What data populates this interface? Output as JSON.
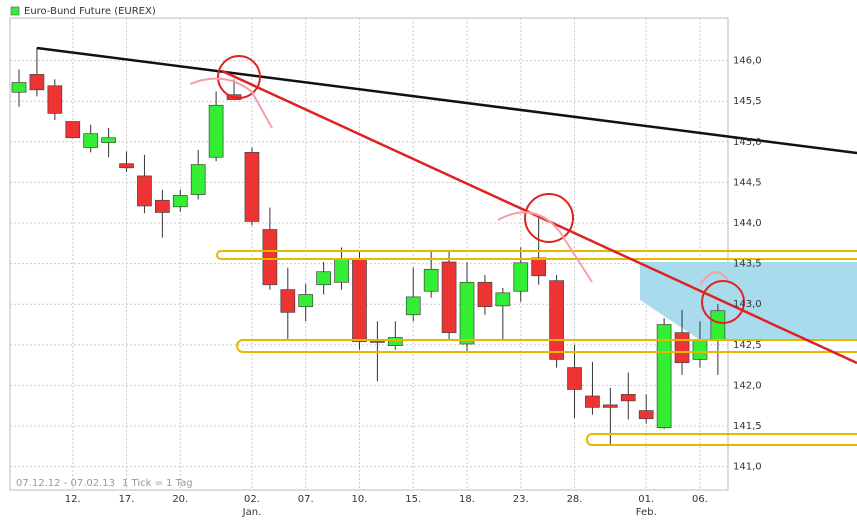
{
  "chart_data": {
    "type": "candlestick",
    "title": "Euro-Bund Future (EUREX)",
    "date_range": "07.12.12 - 07.02.13",
    "tick_note": "1 Tick = 1 Tag",
    "up_color": "#33ee33",
    "down_color": "#ee3333",
    "grid": true,
    "categories": [
      null,
      null,
      null,
      "12.",
      null,
      null,
      "17.",
      null,
      null,
      "20.",
      null,
      null,
      null,
      "02.",
      null,
      null,
      "07.",
      null,
      null,
      "10.",
      null,
      null,
      "15.",
      null,
      null,
      "18.",
      null,
      null,
      "23.",
      null,
      null,
      "28.",
      null,
      null,
      null,
      "01.",
      null,
      null,
      "06.",
      null
    ],
    "category_sublabels": [
      null,
      null,
      null,
      null,
      null,
      null,
      null,
      null,
      null,
      null,
      null,
      null,
      null,
      "Jan.",
      null,
      null,
      null,
      null,
      null,
      null,
      null,
      null,
      null,
      null,
      null,
      null,
      null,
      null,
      null,
      null,
      null,
      null,
      null,
      null,
      null,
      "Feb.",
      null,
      null,
      null,
      null
    ],
    "open": [
      145.61,
      145.83,
      145.69,
      145.25,
      144.93,
      144.99,
      144.73,
      144.58,
      144.28,
      144.2,
      144.35,
      144.81,
      145.58,
      144.87,
      143.92,
      143.18,
      142.97,
      143.24,
      143.27,
      143.55,
      142.55,
      142.49,
      142.87,
      143.16,
      143.52,
      142.51,
      143.27,
      142.98,
      143.16,
      143.57,
      143.29,
      142.22,
      141.87,
      141.76,
      141.89,
      141.69,
      141.48,
      142.65,
      142.32,
      142.56
    ],
    "high": [
      145.89,
      146.16,
      145.77,
      145.25,
      145.21,
      145.17,
      144.88,
      144.84,
      144.41,
      144.41,
      144.9,
      145.62,
      145.77,
      144.93,
      144.19,
      143.45,
      143.25,
      143.52,
      143.7,
      143.65,
      142.79,
      142.79,
      143.45,
      143.67,
      143.67,
      143.52,
      143.36,
      143.2,
      143.7,
      144.07,
      143.36,
      142.5,
      142.29,
      141.97,
      142.16,
      141.89,
      142.83,
      142.93,
      142.79,
      143.0
    ],
    "low": [
      145.43,
      145.56,
      145.27,
      145.05,
      144.87,
      144.81,
      144.63,
      144.12,
      143.82,
      144.14,
      144.29,
      144.76,
      145.52,
      143.97,
      143.18,
      142.56,
      142.79,
      143.12,
      143.18,
      142.44,
      142.05,
      142.44,
      142.79,
      143.08,
      142.56,
      142.42,
      142.87,
      142.56,
      143.03,
      143.24,
      142.22,
      141.6,
      141.64,
      141.27,
      141.58,
      141.53,
      141.46,
      142.13,
      142.22,
      142.13
    ],
    "close": [
      145.73,
      145.64,
      145.35,
      145.05,
      145.1,
      145.05,
      144.68,
      144.21,
      144.13,
      144.34,
      144.72,
      145.45,
      145.52,
      144.02,
      143.24,
      142.9,
      143.12,
      143.4,
      143.55,
      142.54,
      142.53,
      142.59,
      143.09,
      143.43,
      142.65,
      143.27,
      142.97,
      143.14,
      143.51,
      143.35,
      142.32,
      141.95,
      141.73,
      141.73,
      141.81,
      141.59,
      142.75,
      142.28,
      142.56,
      142.92
    ],
    "ylim": [
      140.86,
      146.5
    ],
    "yticks": [
      {
        "value": 141,
        "label": "141,0"
      },
      {
        "value": 141.5,
        "label": "141,5"
      },
      {
        "value": 142,
        "label": "142,0"
      },
      {
        "value": 142.5,
        "label": "142,5"
      },
      {
        "value": 143,
        "label": "143,0"
      },
      {
        "value": 143.5,
        "label": "143,5"
      },
      {
        "value": 144,
        "label": "144,0"
      },
      {
        "value": 144.5,
        "label": "144,5"
      },
      {
        "value": 145,
        "label": "145,0"
      },
      {
        "value": 145.5,
        "label": "145,5"
      },
      {
        "value": 146,
        "label": "146,0"
      }
    ]
  }
}
